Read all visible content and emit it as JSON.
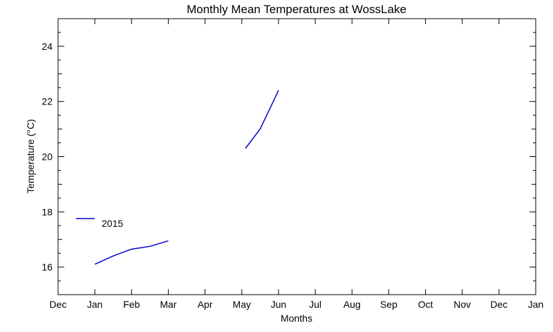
{
  "chart_data": {
    "type": "line",
    "title": "Monthly Mean Temperatures at WossLake",
    "xlabel": "Months",
    "ylabel": "Temperature (°C)",
    "x_tick_labels": [
      "Dec",
      "Jan",
      "Feb",
      "Mar",
      "Apr",
      "May",
      "Jun",
      "Jul",
      "Aug",
      "Sep",
      "Oct",
      "Nov",
      "Dec",
      "Jan"
    ],
    "ylim": [
      15,
      25
    ],
    "y_ticks": [
      16,
      18,
      20,
      22,
      24
    ],
    "grid": false,
    "legend_position": "left",
    "colors": {
      "series": "#0000cc",
      "axis": "#000000"
    },
    "series": [
      {
        "name": "2015",
        "segments": [
          {
            "x": [
              1.0,
              1.5,
              2.0,
              2.5,
              3.0
            ],
            "y": [
              16.1,
              16.4,
              16.65,
              16.75,
              16.95
            ]
          },
          {
            "x": [
              5.1,
              5.5,
              6.0
            ],
            "y": [
              20.3,
              21.0,
              22.4
            ]
          }
        ]
      }
    ]
  }
}
